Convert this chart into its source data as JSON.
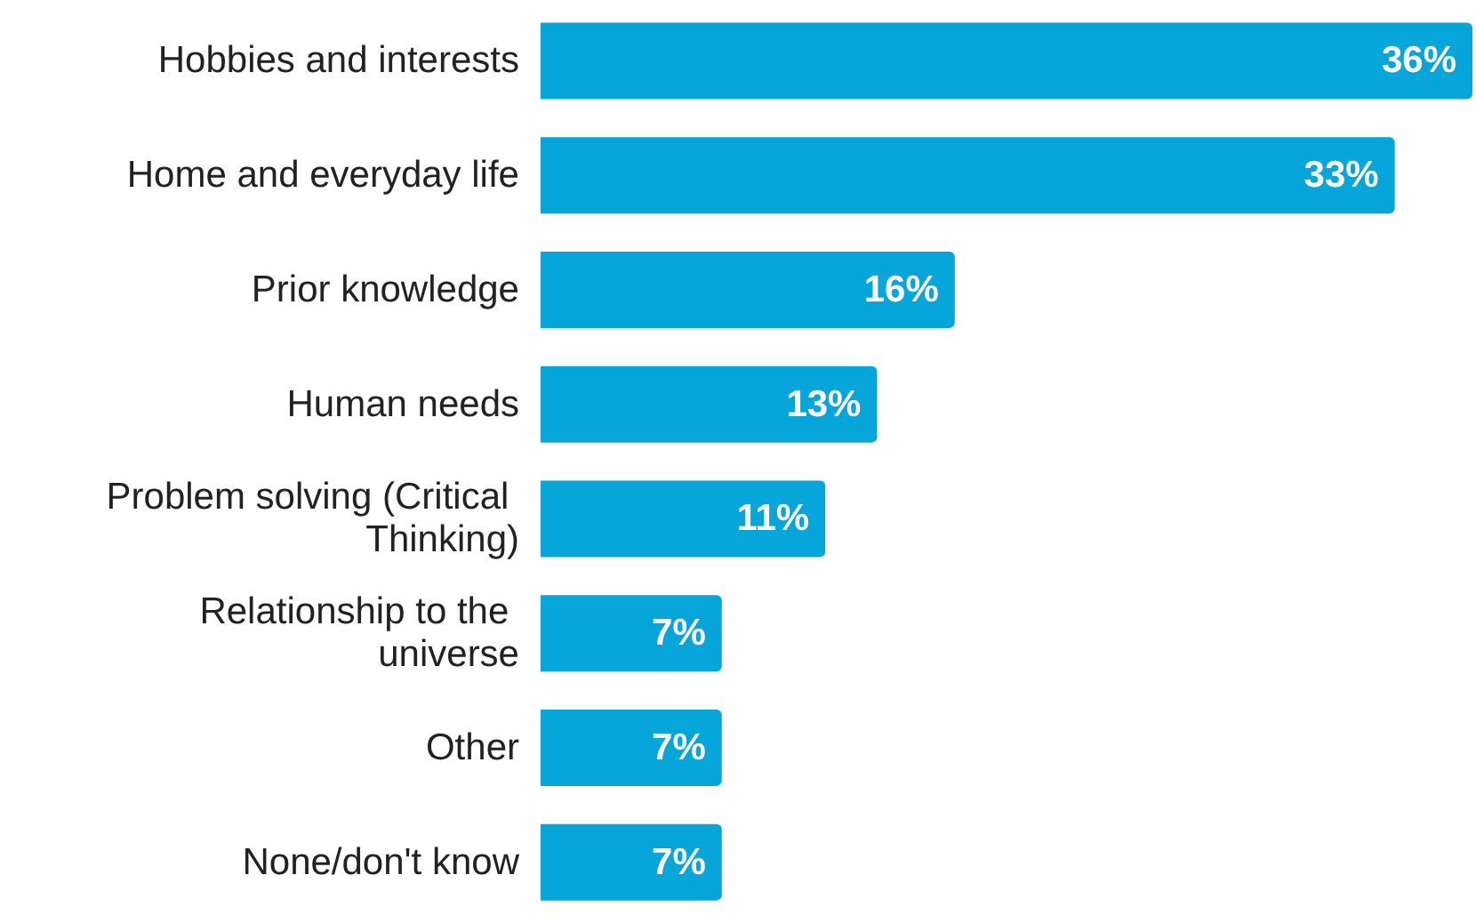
{
  "chart_data": {
    "type": "bar",
    "orientation": "horizontal",
    "categories": [
      "Hobbies and interests",
      "Home and everyday life",
      "Prior knowledge",
      "Human needs",
      "Problem solving (Critical Thinking)",
      "Relationship to the universe",
      "Other",
      "None/don't know"
    ],
    "values": [
      36,
      33,
      16,
      13,
      11,
      7,
      7,
      7
    ],
    "value_labels": [
      "36%",
      "33%",
      "16%",
      "13%",
      "11%",
      "7%",
      "7%",
      "7%"
    ],
    "color": "#06a5da"
  }
}
